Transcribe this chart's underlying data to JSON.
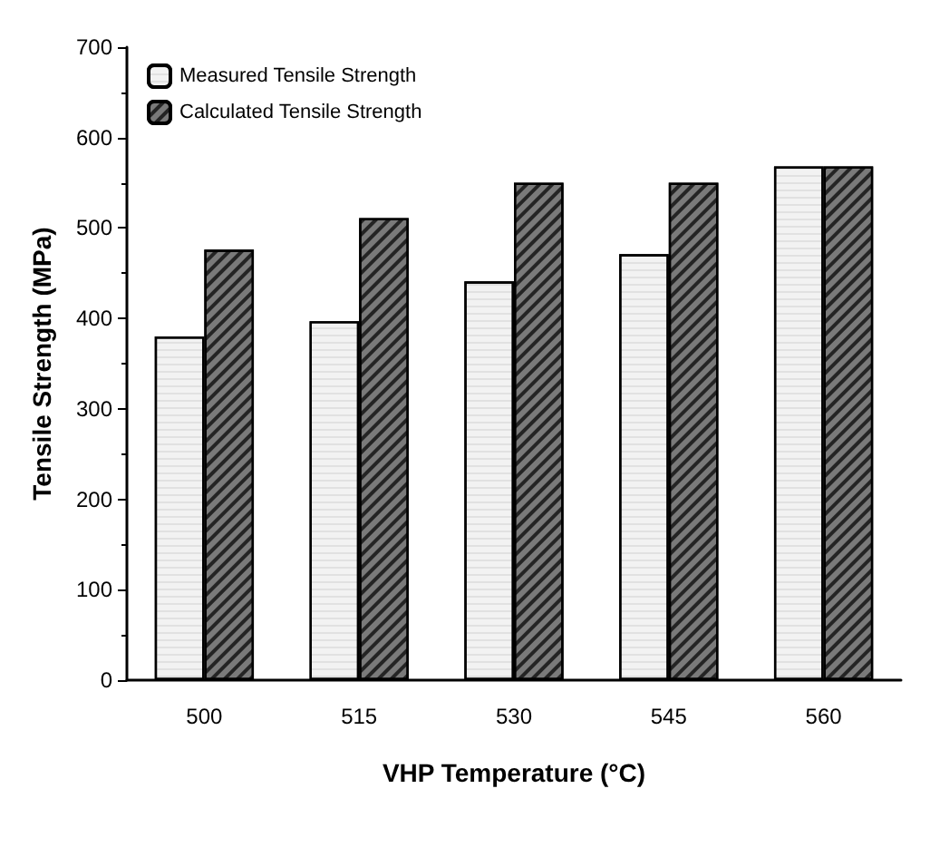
{
  "chart_data": {
    "type": "bar",
    "xlabel": "VHP Temperature (°C)",
    "ylabel": "Tensile Strength (MPa)",
    "categories": [
      "500",
      "515",
      "530",
      "545",
      "560"
    ],
    "series": [
      {
        "name": "Measured Tensile Strength",
        "color": "#f2f2f2",
        "values": [
          380,
          397,
          441,
          471,
          568
        ]
      },
      {
        "name": "Calculated Tensile Strength",
        "color": "#7a7a7a",
        "values": [
          476,
          511,
          550,
          550,
          568
        ]
      }
    ],
    "ylim": [
      0,
      700
    ],
    "yticks": [
      0,
      100,
      200,
      300,
      400,
      500,
      600,
      700
    ],
    "grid": false,
    "legend": "top left"
  }
}
